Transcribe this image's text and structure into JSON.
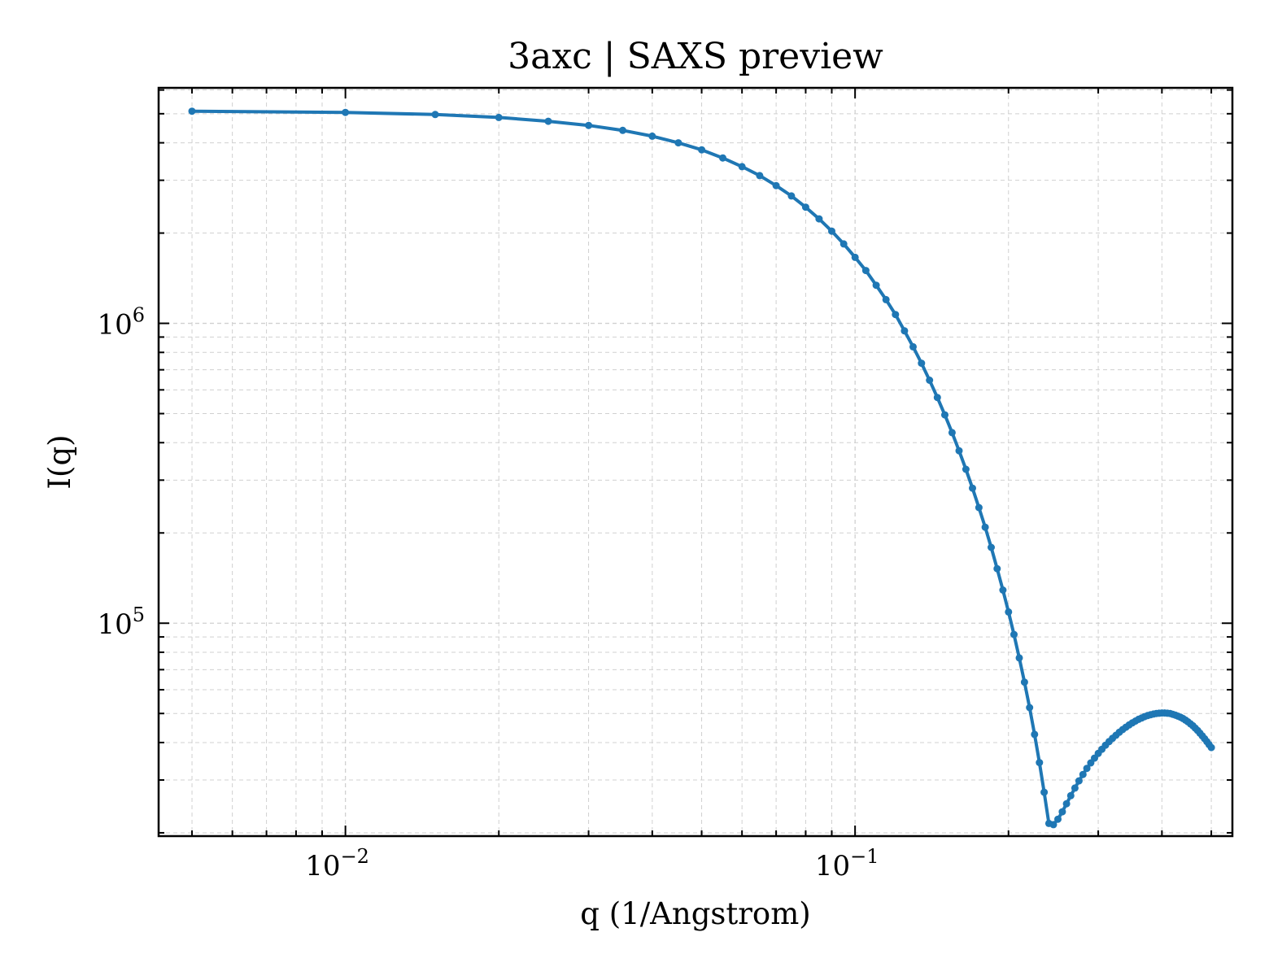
{
  "chart_data": {
    "type": "line",
    "title": "3axc | SAXS preview",
    "xlabel": "q (1/Angstrom)",
    "ylabel": "I(q)",
    "xscale": "log",
    "yscale": "log",
    "xlim": [
      0.0043,
      0.55
    ],
    "ylim": [
      19500,
      6100000
    ],
    "xticks": [
      {
        "value": 0.01,
        "base": "10",
        "exp": "−2"
      },
      {
        "value": 0.1,
        "base": "10",
        "exp": "−1"
      }
    ],
    "yticks": [
      {
        "value": 100000,
        "base": "10",
        "exp": "5"
      },
      {
        "value": 1000000,
        "base": "10",
        "exp": "6"
      }
    ],
    "grid": true,
    "line_color": "#1f77b4",
    "series": [
      {
        "name": "",
        "x": [
          0.005,
          0.01,
          0.015,
          0.02,
          0.025,
          0.03,
          0.035,
          0.04,
          0.045,
          0.05,
          0.055,
          0.06,
          0.065,
          0.07,
          0.075,
          0.08,
          0.085,
          0.09,
          0.095,
          0.1,
          0.105,
          0.11,
          0.115,
          0.12,
          0.125,
          0.13,
          0.135,
          0.14,
          0.145,
          0.15,
          0.155,
          0.16,
          0.165,
          0.17,
          0.175,
          0.18,
          0.185,
          0.19,
          0.195,
          0.2,
          0.205,
          0.21,
          0.215,
          0.22,
          0.225,
          0.23,
          0.235,
          0.24,
          0.245,
          0.25,
          0.255,
          0.26,
          0.265,
          0.27,
          0.275,
          0.28,
          0.285,
          0.29,
          0.295,
          0.3,
          0.305,
          0.31,
          0.315,
          0.32,
          0.325,
          0.33,
          0.335,
          0.34,
          0.345,
          0.35,
          0.355,
          0.36,
          0.365,
          0.37,
          0.375,
          0.38,
          0.385,
          0.39,
          0.395,
          0.4,
          0.405,
          0.41,
          0.415,
          0.42,
          0.425,
          0.43,
          0.435,
          0.44,
          0.445,
          0.45,
          0.455,
          0.46,
          0.465,
          0.47,
          0.475,
          0.48,
          0.485,
          0.49,
          0.495,
          0.5
        ],
        "y": [
          5100000,
          5050000,
          4970000,
          4860000,
          4720000,
          4570000,
          4400000,
          4210000,
          4000000,
          3790000,
          3560000,
          3330000,
          3110000,
          2880000,
          2660000,
          2440000,
          2230000,
          2030000,
          1840000,
          1660000,
          1500000,
          1340000,
          1200000,
          1070000,
          944000,
          835000,
          736000,
          646000,
          566000,
          495000,
          432000,
          376000,
          326000,
          282000,
          243000,
          209000,
          179000,
          152000,
          129000,
          109000,
          91700,
          76600,
          63600,
          52300,
          42600,
          34300,
          27300,
          21500,
          21300,
          22200,
          23500,
          25000,
          26600,
          28200,
          29800,
          31300,
          32800,
          34200,
          35500,
          36800,
          38000,
          39200,
          40300,
          41300,
          42300,
          43300,
          44200,
          45000,
          45800,
          46500,
          47200,
          47800,
          48300,
          48800,
          49200,
          49500,
          49800,
          50000,
          50100,
          50200,
          50200,
          50100,
          50000,
          49700,
          49400,
          49000,
          48600,
          48100,
          47500,
          46900,
          46200,
          45500,
          44700,
          43900,
          43000,
          42100,
          41200,
          40300,
          39400,
          38500
        ]
      }
    ]
  }
}
